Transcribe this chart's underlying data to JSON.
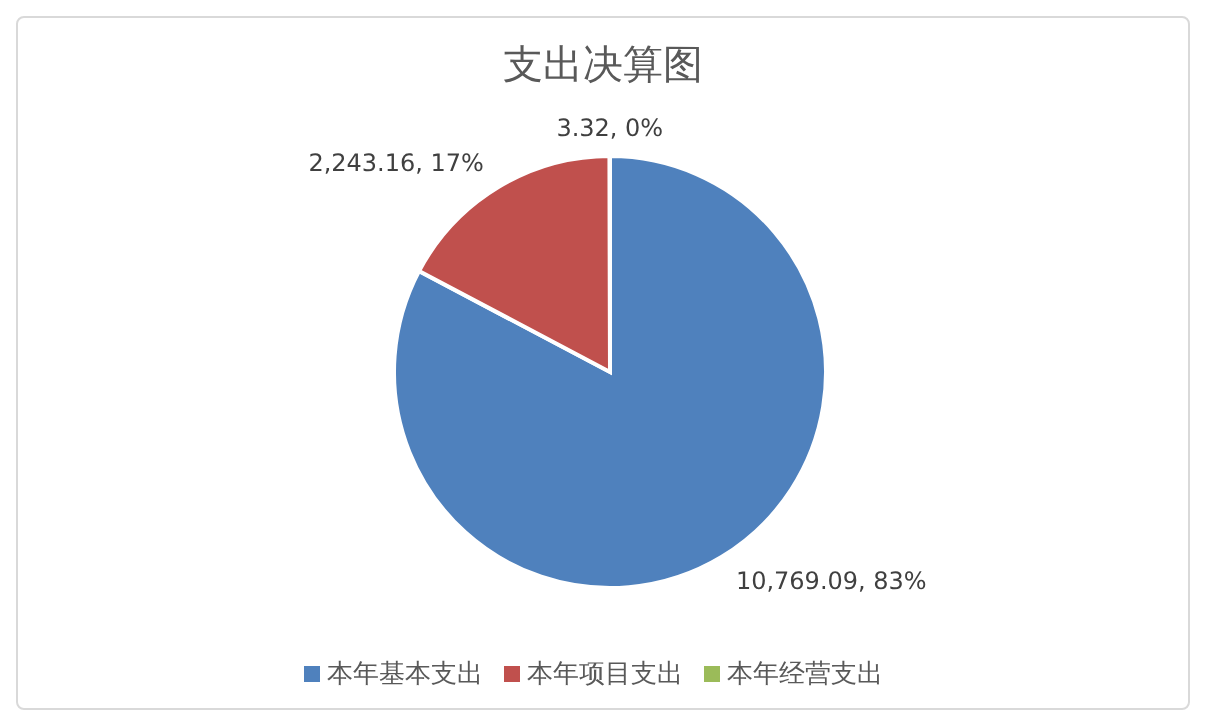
{
  "chart_data": {
    "type": "pie",
    "title": "支出决算图",
    "categories": [
      "本年基本支出",
      "本年项目支出",
      "本年经营支出"
    ],
    "values": [
      10769.09,
      2243.16,
      3.32
    ],
    "colors": [
      "#4f81bd",
      "#c0504d",
      "#9bbb59"
    ],
    "value_labels": [
      "10,769.09, 83%",
      "2,243.16, 17%",
      "3.32, 0%"
    ],
    "legend": "bottom"
  }
}
